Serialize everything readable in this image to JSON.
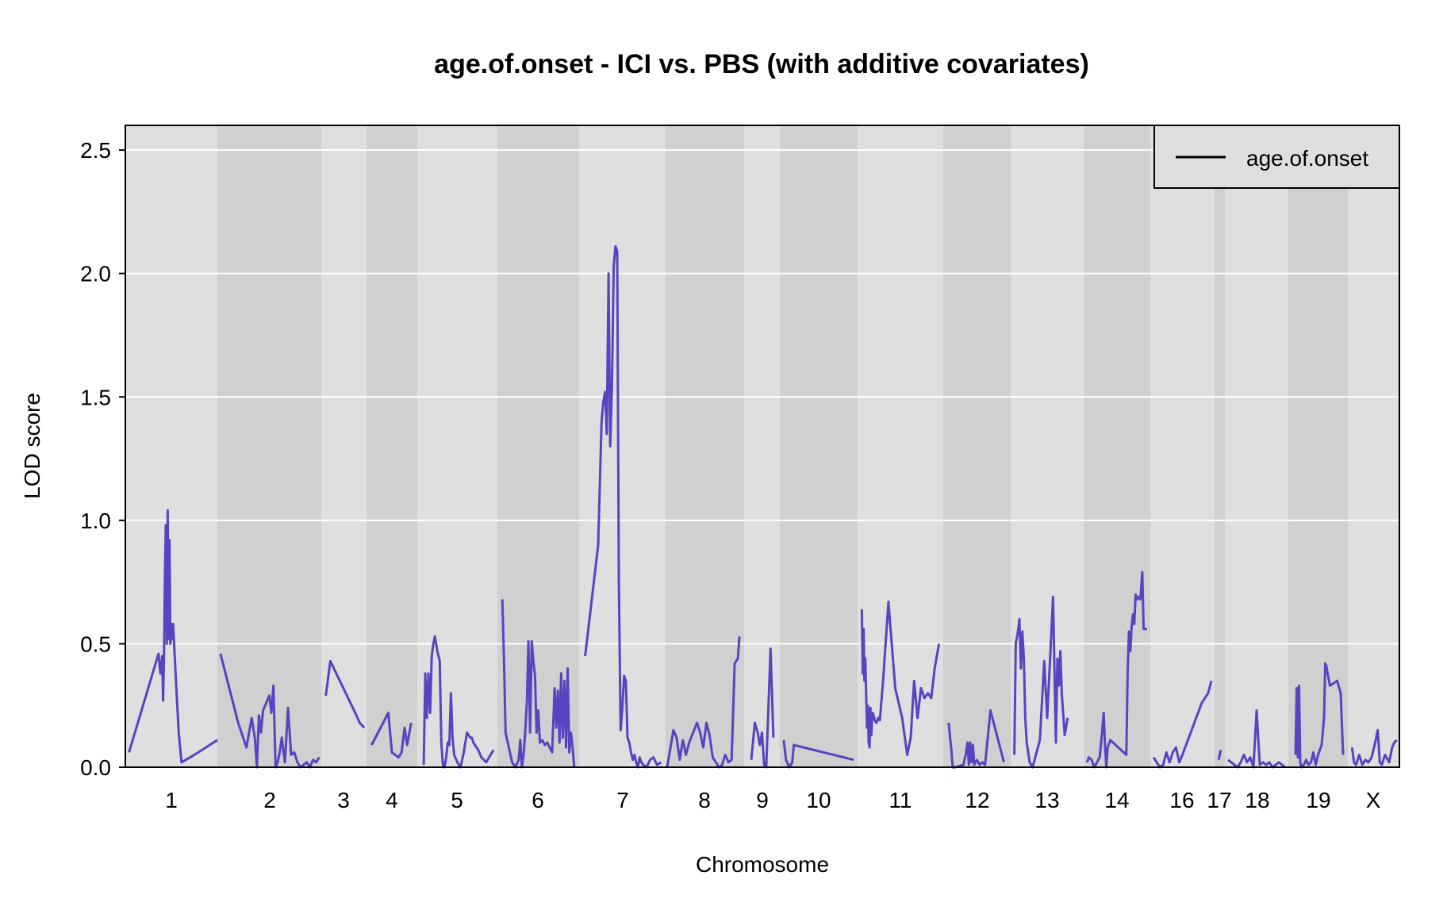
{
  "chart_data": {
    "type": "line",
    "title": "age.of.onset - ICI vs. PBS (with additive covariates)",
    "xlabel": "Chromosome",
    "ylabel": "LOD score",
    "ylim": [
      0,
      2.6
    ],
    "yticks": [
      "0.0",
      "0.5",
      "1.0",
      "1.5",
      "2.0",
      "2.5"
    ],
    "grid": true,
    "legend_position": "top-right",
    "line_color": "#5545C0",
    "band_colors": [
      "#DFDFDF",
      "#D0D0D0"
    ],
    "series": [
      {
        "name": "age.of.onset",
        "chromosomes": [
          {
            "label": "1",
            "x": [
              0.04,
              0.36,
              0.38,
              0.4,
              0.41,
              0.42,
              0.43,
              0.44,
              0.45,
              0.46,
              0.47,
              0.48,
              0.49,
              0.5,
              0.51,
              0.52,
              0.53,
              0.55,
              0.58,
              0.61,
              0.75,
              1.0
            ],
            "y": [
              0.06,
              0.46,
              0.38,
              0.45,
              0.27,
              0.44,
              0.78,
              0.98,
              0.5,
              1.04,
              0.52,
              0.92,
              0.5,
              0.58,
              0.52,
              0.58,
              0.5,
              0.35,
              0.14,
              0.02,
              0.05,
              0.11
            ]
          },
          {
            "label": "2",
            "x": [
              0.03,
              0.2,
              0.28,
              0.33,
              0.36,
              0.38,
              0.4,
              0.42,
              0.44,
              0.47,
              0.5,
              0.52,
              0.54,
              0.56,
              0.58,
              0.6,
              0.62,
              0.65,
              0.68,
              0.71,
              0.74,
              0.77,
              0.8,
              0.83,
              0.86,
              0.89,
              0.92,
              0.95,
              0.98
            ],
            "y": [
              0.46,
              0.18,
              0.08,
              0.2,
              0.12,
              0.0,
              0.21,
              0.14,
              0.23,
              0.26,
              0.29,
              0.22,
              0.33,
              0.0,
              0.02,
              0.06,
              0.12,
              0.02,
              0.24,
              0.05,
              0.06,
              0.02,
              0.0,
              0.01,
              0.02,
              0.0,
              0.03,
              0.02,
              0.04
            ]
          },
          {
            "label": "3",
            "x": [
              0.1,
              0.2,
              0.75,
              0.85,
              0.95
            ],
            "y": [
              0.29,
              0.43,
              0.22,
              0.18,
              0.16
            ]
          },
          {
            "label": "4",
            "x": [
              0.1,
              0.43,
              0.5,
              0.63,
              0.69,
              0.75,
              0.8,
              0.88
            ],
            "y": [
              0.09,
              0.22,
              0.06,
              0.04,
              0.06,
              0.16,
              0.09,
              0.18
            ]
          },
          {
            "label": "5",
            "x": [
              0.08,
              0.1,
              0.12,
              0.14,
              0.16,
              0.18,
              0.2,
              0.22,
              0.25,
              0.28,
              0.3,
              0.32,
              0.34,
              0.36,
              0.38,
              0.4,
              0.42,
              0.44,
              0.46,
              0.5,
              0.54,
              0.58,
              0.62,
              0.66,
              0.68,
              0.7,
              0.72,
              0.76,
              0.8,
              0.86,
              0.95
            ],
            "y": [
              0.01,
              0.38,
              0.2,
              0.38,
              0.22,
              0.45,
              0.5,
              0.53,
              0.47,
              0.43,
              0.1,
              0.01,
              0.0,
              0.04,
              0.1,
              0.09,
              0.3,
              0.12,
              0.05,
              0.02,
              0.0,
              0.06,
              0.14,
              0.12,
              0.12,
              0.1,
              0.09,
              0.07,
              0.04,
              0.02,
              0.07
            ]
          },
          {
            "label": "6",
            "x": [
              0.06,
              0.08,
              0.1,
              0.14,
              0.18,
              0.22,
              0.26,
              0.28,
              0.3,
              0.32,
              0.34,
              0.36,
              0.38,
              0.4,
              0.42,
              0.44,
              0.46,
              0.48,
              0.5,
              0.52,
              0.55,
              0.58,
              0.61,
              0.64,
              0.67,
              0.7,
              0.72,
              0.74,
              0.76,
              0.78,
              0.8,
              0.82,
              0.84,
              0.86,
              0.88,
              0.9,
              0.92,
              0.94
            ],
            "y": [
              0.68,
              0.45,
              0.14,
              0.08,
              0.02,
              0.0,
              0.03,
              0.11,
              0.0,
              0.05,
              0.14,
              0.26,
              0.51,
              0.14,
              0.51,
              0.43,
              0.37,
              0.14,
              0.23,
              0.1,
              0.11,
              0.09,
              0.1,
              0.08,
              0.06,
              0.32,
              0.16,
              0.31,
              0.1,
              0.38,
              0.12,
              0.35,
              0.08,
              0.4,
              0.06,
              0.14,
              0.08,
              0.0
            ]
          },
          {
            "label": "7",
            "x": [
              0.07,
              0.22,
              0.26,
              0.28,
              0.3,
              0.32,
              0.34,
              0.36,
              0.38,
              0.4,
              0.42,
              0.44,
              0.46,
              0.48,
              0.5,
              0.52,
              0.54,
              0.56,
              0.58,
              0.6,
              0.62,
              0.64,
              0.66,
              0.68,
              0.7,
              0.72,
              0.74,
              0.78,
              0.82,
              0.86,
              0.9,
              0.95
            ],
            "y": [
              0.45,
              0.9,
              1.4,
              1.48,
              1.52,
              1.35,
              2.0,
              1.3,
              1.55,
              2.03,
              2.11,
              2.09,
              0.75,
              0.15,
              0.24,
              0.37,
              0.35,
              0.12,
              0.1,
              0.06,
              0.03,
              0.05,
              0.02,
              0.0,
              0.04,
              0.02,
              0.01,
              0.0,
              0.03,
              0.04,
              0.01,
              0.02
            ]
          },
          {
            "label": "8",
            "x": [
              0.02,
              0.1,
              0.14,
              0.18,
              0.22,
              0.26,
              0.3,
              0.4,
              0.44,
              0.48,
              0.52,
              0.56,
              0.6,
              0.64,
              0.68,
              0.72,
              0.76,
              0.8,
              0.84,
              0.88,
              0.92,
              0.94
            ],
            "y": [
              0.0,
              0.15,
              0.12,
              0.03,
              0.11,
              0.05,
              0.1,
              0.18,
              0.14,
              0.08,
              0.18,
              0.13,
              0.04,
              0.02,
              0.0,
              0.01,
              0.05,
              0.02,
              0.03,
              0.42,
              0.44,
              0.53
            ]
          },
          {
            "label": "9",
            "x": [
              0.2,
              0.3,
              0.38,
              0.44,
              0.5,
              0.56,
              0.62,
              0.74,
              0.82
            ],
            "y": [
              0.03,
              0.18,
              0.14,
              0.09,
              0.14,
              0.01,
              0.0,
              0.48,
              0.12
            ]
          },
          {
            "label": "10",
            "x": [
              0.05,
              0.08,
              0.12,
              0.16,
              0.18,
              0.95
            ],
            "y": [
              0.11,
              0.03,
              0.0,
              0.02,
              0.09,
              0.03
            ]
          },
          {
            "label": "11",
            "x": [
              0.05,
              0.06,
              0.07,
              0.08,
              0.09,
              0.1,
              0.11,
              0.12,
              0.13,
              0.14,
              0.15,
              0.16,
              0.17,
              0.18,
              0.2,
              0.22,
              0.24,
              0.26,
              0.3,
              0.36,
              0.44,
              0.48,
              0.52,
              0.58,
              0.62,
              0.66,
              0.7,
              0.74,
              0.78,
              0.82,
              0.86,
              0.9,
              0.95
            ],
            "y": [
              0.64,
              0.38,
              0.56,
              0.35,
              0.44,
              0.3,
              0.16,
              0.25,
              0.1,
              0.08,
              0.24,
              0.13,
              0.2,
              0.22,
              0.19,
              0.18,
              0.2,
              0.19,
              0.36,
              0.67,
              0.32,
              0.26,
              0.2,
              0.05,
              0.12,
              0.35,
              0.2,
              0.32,
              0.28,
              0.3,
              0.28,
              0.4,
              0.5
            ]
          },
          {
            "label": "12",
            "x": [
              0.08,
              0.12,
              0.14,
              0.18,
              0.3,
              0.34,
              0.36,
              0.38,
              0.4,
              0.42,
              0.44,
              0.46,
              0.5,
              0.54,
              0.58,
              0.62,
              0.7,
              0.9
            ],
            "y": [
              0.18,
              0.07,
              0.0,
              0.0,
              0.01,
              0.06,
              0.1,
              0.01,
              0.1,
              0.02,
              0.09,
              0.01,
              0.03,
              0.01,
              0.02,
              0.01,
              0.23,
              0.02
            ]
          },
          {
            "label": "13",
            "x": [
              0.05,
              0.07,
              0.1,
              0.12,
              0.14,
              0.16,
              0.18,
              0.2,
              0.22,
              0.26,
              0.3,
              0.4,
              0.46,
              0.5,
              0.54,
              0.58,
              0.62,
              0.64,
              0.66,
              0.68,
              0.7,
              0.74,
              0.78
            ],
            "y": [
              0.05,
              0.5,
              0.55,
              0.6,
              0.4,
              0.55,
              0.44,
              0.2,
              0.1,
              0.02,
              0.0,
              0.11,
              0.43,
              0.2,
              0.44,
              0.69,
              0.1,
              0.44,
              0.33,
              0.47,
              0.3,
              0.13,
              0.2
            ]
          },
          {
            "label": "14",
            "x": [
              0.05,
              0.08,
              0.12,
              0.16,
              0.2,
              0.24,
              0.28,
              0.3,
              0.32,
              0.34,
              0.36,
              0.4,
              0.64,
              0.66,
              0.68,
              0.7,
              0.72,
              0.74,
              0.76,
              0.78,
              0.8,
              0.82,
              0.85,
              0.88,
              0.9,
              0.95
            ],
            "y": [
              0.02,
              0.04,
              0.03,
              0.0,
              0.02,
              0.04,
              0.15,
              0.22,
              0.09,
              0.0,
              0.08,
              0.11,
              0.05,
              0.38,
              0.55,
              0.47,
              0.57,
              0.62,
              0.58,
              0.7,
              0.68,
              0.69,
              0.68,
              0.79,
              0.56,
              0.56
            ]
          },
          {
            "label": "16",
            "x": [
              0.05,
              0.1,
              0.15,
              0.2,
              0.25,
              0.3,
              0.35,
              0.4,
              0.45,
              0.5,
              0.8,
              0.9,
              0.95
            ],
            "y": [
              0.04,
              0.02,
              0.0,
              0.01,
              0.06,
              0.02,
              0.06,
              0.08,
              0.02,
              0.05,
              0.26,
              0.3,
              0.35
            ]
          },
          {
            "label": "17",
            "x": [
              0.4,
              0.6
            ],
            "y": [
              0.03,
              0.07
            ]
          },
          {
            "label": "18",
            "x": [
              0.05,
              0.1,
              0.15,
              0.2,
              0.25,
              0.3,
              0.35,
              0.4,
              0.45,
              0.5,
              0.55,
              0.6,
              0.65,
              0.7,
              0.75,
              0.8,
              0.85,
              0.9,
              0.95
            ],
            "y": [
              0.03,
              0.02,
              0.01,
              0.0,
              0.02,
              0.05,
              0.02,
              0.04,
              0.0,
              0.23,
              0.01,
              0.02,
              0.01,
              0.02,
              0.0,
              0.01,
              0.02,
              0.01,
              0.0
            ]
          },
          {
            "label": "19",
            "x": [
              0.12,
              0.14,
              0.16,
              0.18,
              0.2,
              0.22,
              0.26,
              0.3,
              0.34,
              0.38,
              0.42,
              0.46,
              0.5,
              0.56,
              0.6,
              0.62,
              0.64,
              0.66,
              0.7,
              0.76,
              0.82,
              0.88,
              0.92
            ],
            "y": [
              0.05,
              0.32,
              0.04,
              0.33,
              0.02,
              0.0,
              0.01,
              0.03,
              0.01,
              0.02,
              0.06,
              0.01,
              0.05,
              0.09,
              0.2,
              0.42,
              0.41,
              0.38,
              0.33,
              0.34,
              0.35,
              0.3,
              0.05
            ]
          },
          {
            "label": "X",
            "x": [
              0.08,
              0.12,
              0.16,
              0.22,
              0.28,
              0.34,
              0.4,
              0.46,
              0.52,
              0.58,
              0.62,
              0.66,
              0.72,
              0.8,
              0.86,
              0.9,
              0.95
            ],
            "y": [
              0.08,
              0.02,
              0.01,
              0.05,
              0.01,
              0.03,
              0.02,
              0.04,
              0.09,
              0.15,
              0.02,
              0.01,
              0.05,
              0.02,
              0.08,
              0.1,
              0.11
            ]
          }
        ]
      }
    ]
  }
}
